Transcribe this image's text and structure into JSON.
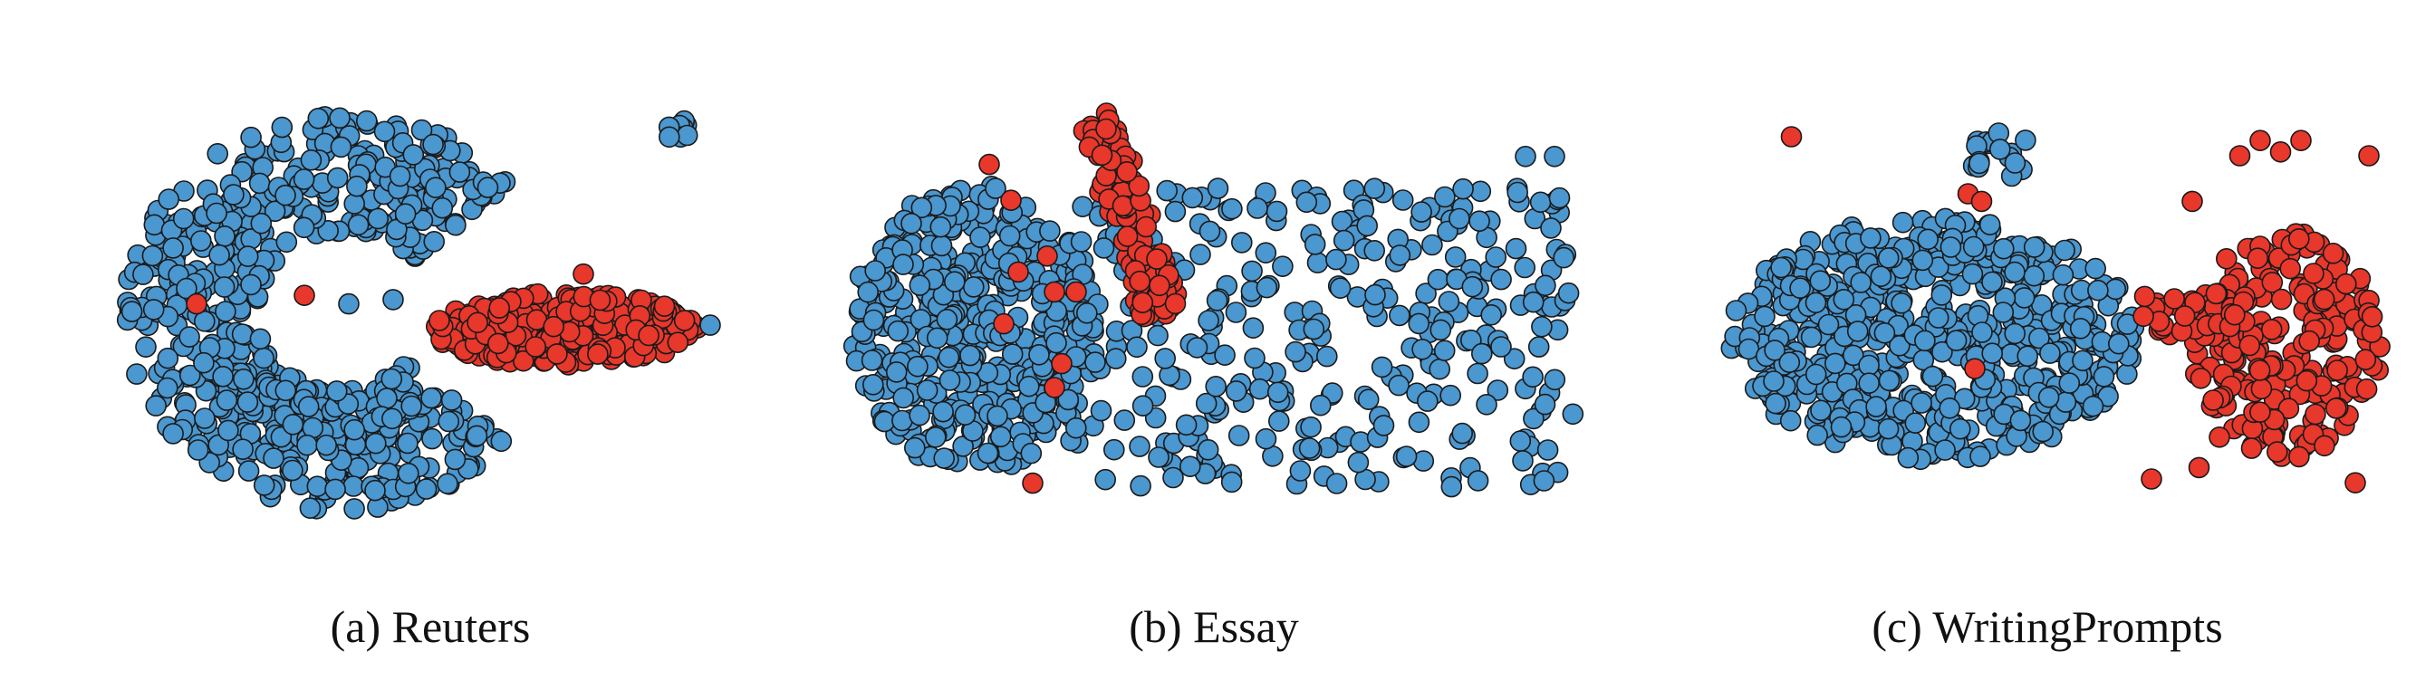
{
  "colors": {
    "human": "#4b97cf",
    "machine": "#e8372b",
    "edge": "#1a1a1a"
  },
  "chart_data": [
    {
      "type": "scatter",
      "caption": "(a) Reuters",
      "grid": false,
      "legend": "none",
      "clusters": [
        {
          "color": "#4b97cf",
          "shape": "arc",
          "cx": 0.14,
          "cy": 0.5,
          "r": 0.36,
          "thickness": 0.22,
          "startDeg": 40,
          "endDeg": 320,
          "count": 620
        },
        {
          "color": "#4b97cf",
          "shape": "blob",
          "cx": 0.92,
          "cy": 0.07,
          "rx": 0.02,
          "ry": 0.03,
          "count": 8
        },
        {
          "color": "#e8372b",
          "shape": "blob",
          "cx": 0.74,
          "cy": 0.54,
          "rx": 0.21,
          "ry": 0.085,
          "count": 300
        }
      ],
      "points": [
        {
          "x": 0.47,
          "y": 0.47,
          "c": "#4b97cf"
        },
        {
          "x": 0.4,
          "y": 0.48,
          "c": "#4b97cf"
        },
        {
          "x": 0.97,
          "y": 0.53,
          "c": "#4b97cf"
        },
        {
          "x": 0.33,
          "y": 0.46,
          "c": "#e8372b"
        },
        {
          "x": 0.16,
          "y": 0.48,
          "c": "#e8372b"
        },
        {
          "x": 0.77,
          "y": 0.41,
          "c": "#e8372b"
        }
      ]
    },
    {
      "type": "scatter",
      "caption": "(b) Essay",
      "grid": false,
      "legend": "none",
      "clusters": [
        {
          "color": "#4b97cf",
          "shape": "blob",
          "cx": 0.17,
          "cy": 0.55,
          "rx": 0.17,
          "ry": 0.36,
          "count": 420
        },
        {
          "color": "#4b97cf",
          "shape": "box",
          "x0": 0.3,
          "x1": 1.0,
          "y0": 0.2,
          "y1": 0.95,
          "count": 330
        },
        {
          "color": "#e8372b",
          "shape": "diag",
          "x0": 0.34,
          "y0": 0.03,
          "x1": 0.43,
          "y1": 0.52,
          "w": 0.06,
          "count": 110
        }
      ],
      "points": [
        {
          "x": 0.19,
          "y": 0.14,
          "c": "#e8372b"
        },
        {
          "x": 0.22,
          "y": 0.23,
          "c": "#e8372b"
        },
        {
          "x": 0.27,
          "y": 0.37,
          "c": "#e8372b"
        },
        {
          "x": 0.23,
          "y": 0.41,
          "c": "#e8372b"
        },
        {
          "x": 0.28,
          "y": 0.46,
          "c": "#e8372b"
        },
        {
          "x": 0.31,
          "y": 0.46,
          "c": "#e8372b"
        },
        {
          "x": 0.21,
          "y": 0.54,
          "c": "#e8372b"
        },
        {
          "x": 0.29,
          "y": 0.64,
          "c": "#e8372b"
        },
        {
          "x": 0.28,
          "y": 0.7,
          "c": "#e8372b"
        },
        {
          "x": 0.25,
          "y": 0.94,
          "c": "#e8372b"
        },
        {
          "x": 0.56,
          "y": 0.25,
          "c": "#4b97cf"
        },
        {
          "x": 0.93,
          "y": 0.12,
          "c": "#4b97cf"
        },
        {
          "x": 0.97,
          "y": 0.12,
          "c": "#4b97cf"
        }
      ]
    },
    {
      "type": "scatter",
      "caption": "(c) WritingPrompts",
      "grid": false,
      "legend": "none",
      "clusters": [
        {
          "color": "#4b97cf",
          "shape": "blob",
          "cx": 0.34,
          "cy": 0.58,
          "rx": 0.3,
          "ry": 0.32,
          "count": 600
        },
        {
          "color": "#4b97cf",
          "shape": "blob",
          "cx": 0.44,
          "cy": 0.1,
          "rx": 0.05,
          "ry": 0.06,
          "count": 18
        },
        {
          "color": "#e8372b",
          "shape": "blob",
          "cx": 0.86,
          "cy": 0.6,
          "rx": 0.14,
          "ry": 0.3,
          "count": 210
        },
        {
          "color": "#e8372b",
          "shape": "blob",
          "cx": 0.74,
          "cy": 0.52,
          "rx": 0.1,
          "ry": 0.06,
          "count": 35
        }
      ],
      "points": [
        {
          "x": 0.13,
          "y": 0.05,
          "c": "#e8372b"
        },
        {
          "x": 0.39,
          "y": 0.2,
          "c": "#e8372b"
        },
        {
          "x": 0.41,
          "y": 0.22,
          "c": "#e8372b"
        },
        {
          "x": 0.4,
          "y": 0.66,
          "c": "#e8372b"
        },
        {
          "x": 0.65,
          "y": 0.47,
          "c": "#e8372b"
        },
        {
          "x": 0.66,
          "y": 0.95,
          "c": "#e8372b"
        },
        {
          "x": 0.73,
          "y": 0.92,
          "c": "#e8372b"
        },
        {
          "x": 0.76,
          "y": 0.84,
          "c": "#e8372b"
        },
        {
          "x": 0.79,
          "y": 0.1,
          "c": "#e8372b"
        },
        {
          "x": 0.82,
          "y": 0.06,
          "c": "#e8372b"
        },
        {
          "x": 0.85,
          "y": 0.09,
          "c": "#e8372b"
        },
        {
          "x": 0.88,
          "y": 0.06,
          "c": "#e8372b"
        },
        {
          "x": 0.98,
          "y": 0.1,
          "c": "#e8372b"
        },
        {
          "x": 0.72,
          "y": 0.22,
          "c": "#e8372b"
        },
        {
          "x": 0.96,
          "y": 0.96,
          "c": "#e8372b"
        }
      ]
    }
  ]
}
